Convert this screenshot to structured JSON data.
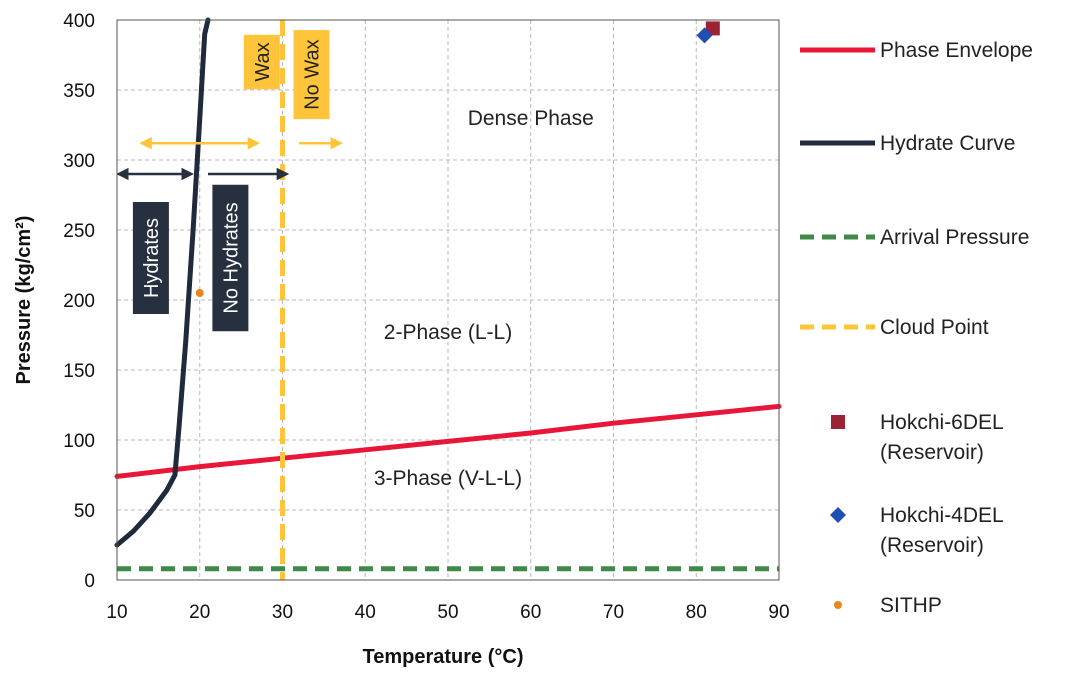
{
  "chart_data": {
    "type": "line",
    "title": "",
    "xlabel": "Temperature (°C)",
    "ylabel": "Pressure  (kg/cm²)",
    "xlim": [
      10,
      90
    ],
    "ylim": [
      0,
      400
    ],
    "xticks": [
      "10",
      "20",
      "30",
      "40",
      "50",
      "60",
      "70",
      "80",
      "90"
    ],
    "yticks": [
      "0",
      "50",
      "100",
      "150",
      "200",
      "250",
      "300",
      "350",
      "400"
    ],
    "grid": true,
    "legend_position": "right",
    "series": [
      {
        "name": "Phase Envelope",
        "kind": "line",
        "style": "solid",
        "color": "#e8173a",
        "points": [
          [
            10,
            74
          ],
          [
            20,
            81
          ],
          [
            30,
            87
          ],
          [
            40,
            93
          ],
          [
            50,
            99
          ],
          [
            60,
            105
          ],
          [
            70,
            112
          ],
          [
            80,
            118
          ],
          [
            90,
            124
          ]
        ]
      },
      {
        "name": "Hydrate Curve",
        "kind": "line",
        "style": "solid",
        "color": "#1f2a3c",
        "points": [
          [
            10,
            25
          ],
          [
            12,
            35
          ],
          [
            14,
            48
          ],
          [
            16,
            64
          ],
          [
            17,
            75
          ],
          [
            17.5,
            110
          ],
          [
            18.3,
            170
          ],
          [
            19.2,
            250
          ],
          [
            20,
            330
          ],
          [
            20.6,
            390
          ],
          [
            21,
            400
          ]
        ]
      },
      {
        "name": "Arrival Pressure",
        "kind": "hline",
        "style": "dashed",
        "color": "#3f8a4a",
        "y": 8
      },
      {
        "name": "Cloud Point",
        "kind": "vline",
        "style": "dashed",
        "color": "#ffc43a",
        "x": 30
      },
      {
        "name": "Hokchi-6DEL\n(Reservoir)",
        "kind": "marker",
        "marker": "square",
        "color": "#9b2335",
        "points": [
          [
            82,
            394
          ]
        ]
      },
      {
        "name": "Hokchi-4DEL\n(Reservoir)",
        "kind": "marker",
        "marker": "diamond",
        "color": "#1f4fb4",
        "points": [
          [
            81,
            389
          ]
        ]
      },
      {
        "name": "SITHP",
        "kind": "marker",
        "marker": "circle",
        "color": "#e8881a",
        "points": [
          [
            20,
            205
          ]
        ]
      }
    ],
    "annotations": {
      "regions": [
        {
          "text": "Dense Phase",
          "x": 60,
          "y": 325
        },
        {
          "text": "2-Phase (L-L)",
          "x": 50,
          "y": 172
        },
        {
          "text": "3-Phase (V-L-L)",
          "x": 50,
          "y": 68
        }
      ],
      "boxes": [
        {
          "text": "Wax",
          "x": 27.5,
          "y": 370,
          "fill": "#ffc43a",
          "text_color": "#222222"
        },
        {
          "text": "No Wax",
          "x": 33.5,
          "y": 361,
          "fill": "#ffc43a",
          "text_color": "#222222"
        },
        {
          "text": "Hydrates",
          "x": 14.1,
          "y": 230,
          "fill": "#26303f",
          "text_color": "#ffffff"
        },
        {
          "text": "No Hydrates",
          "x": 23.7,
          "y": 230,
          "fill": "#26303f",
          "text_color": "#ffffff"
        }
      ],
      "arrows": [
        {
          "name": "wax-arrow",
          "color": "#ffc43a",
          "y": 312,
          "x_from": 13,
          "x_to": 27,
          "double": true
        },
        {
          "name": "no-wax-arrow",
          "color": "#ffc43a",
          "y": 312,
          "x_from": 32,
          "x_to": 37,
          "double": false
        },
        {
          "name": "hydrate-arrow",
          "color": "#26303f",
          "y": 290,
          "x_from": 10.2,
          "x_to": 19,
          "double": true
        },
        {
          "name": "no-hydrate-arrow",
          "color": "#26303f",
          "y": 290,
          "x_from": 21,
          "x_to": 30.5,
          "double": false
        }
      ]
    }
  }
}
